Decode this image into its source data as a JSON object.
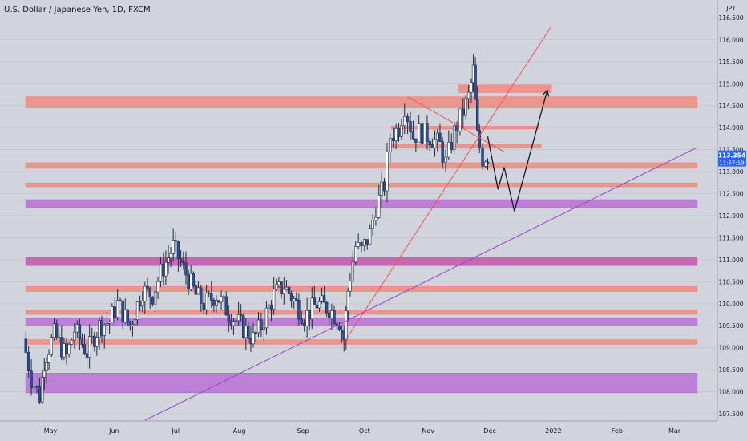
{
  "header": {
    "title": "U.S. Dollar / Japanese Yen, 1D, FXCM"
  },
  "price_badge": {
    "price": "113.354",
    "countdown": "11:57:19",
    "color": "#2962ff"
  },
  "colors": {
    "background": "#d1d4dc",
    "up_candle": "#ffffff",
    "down_candle": "#2a4f9a",
    "salmon_zone": "#ef8a80",
    "purple_zone": "#b66ad6",
    "magenta_zone": "#c04fa8",
    "red_trendline": "#f05050",
    "purple_trendline": "#9c42c8",
    "projection": "#131722"
  },
  "chart_data": {
    "type": "candlestick",
    "title": "U.S. Dollar / Japanese Yen, 1D, FXCM",
    "ylabel": "JPY",
    "ylim": [
      107.3,
      116.8
    ],
    "x_ticks": [
      "May",
      "Jun",
      "Jul",
      "Aug",
      "Sep",
      "Oct",
      "Nov",
      "Dec",
      "2022",
      "Feb",
      "Mar"
    ],
    "y_ticks": [
      "107.500",
      "108.000",
      "108.500",
      "109.000",
      "109.500",
      "110.000",
      "110.500",
      "111.000",
      "111.500",
      "112.000",
      "112.500",
      "113.000",
      "113.500",
      "114.000",
      "114.500",
      "115.000",
      "115.500",
      "116.000",
      "116.500"
    ],
    "last_price": 113.354,
    "price_path": [
      [
        "2021-04-19",
        109.2
      ],
      [
        "2021-04-23",
        108.3
      ],
      [
        "2021-04-27",
        107.9
      ],
      [
        "2021-04-29",
        108.7
      ],
      [
        "2021-05-04",
        109.3
      ],
      [
        "2021-05-10",
        108.8
      ],
      [
        "2021-05-14",
        109.4
      ],
      [
        "2021-05-20",
        108.9
      ],
      [
        "2021-05-26",
        109.5
      ],
      [
        "2021-05-31",
        109.6
      ],
      [
        "2021-06-04",
        110.0
      ],
      [
        "2021-06-10",
        109.5
      ],
      [
        "2021-06-16",
        110.3
      ],
      [
        "2021-06-21",
        110.2
      ],
      [
        "2021-06-25",
        110.7
      ],
      [
        "2021-07-01",
        111.3
      ],
      [
        "2021-07-06",
        110.8
      ],
      [
        "2021-07-12",
        110.2
      ],
      [
        "2021-07-16",
        110.0
      ],
      [
        "2021-07-22",
        110.2
      ],
      [
        "2021-07-28",
        109.8
      ],
      [
        "2021-08-03",
        109.5
      ],
      [
        "2021-08-09",
        109.2
      ],
      [
        "2021-08-13",
        109.5
      ],
      [
        "2021-08-19",
        110.2
      ],
      [
        "2021-08-24",
        110.4
      ],
      [
        "2021-08-30",
        110.0
      ],
      [
        "2021-09-03",
        109.7
      ],
      [
        "2021-09-09",
        110.0
      ],
      [
        "2021-09-15",
        109.9
      ],
      [
        "2021-09-20",
        109.6
      ],
      [
        "2021-09-22",
        109.2
      ],
      [
        "2021-09-24",
        110.3
      ],
      [
        "2021-09-28",
        111.3
      ],
      [
        "2021-10-01",
        111.2
      ],
      [
        "2021-10-05",
        111.6
      ],
      [
        "2021-10-08",
        112.2
      ],
      [
        "2021-10-12",
        112.7
      ],
      [
        "2021-10-15",
        113.8
      ],
      [
        "2021-10-19",
        114.0
      ],
      [
        "2021-10-22",
        114.5
      ],
      [
        "2021-10-26",
        113.8
      ],
      [
        "2021-10-29",
        113.9
      ],
      [
        "2021-11-03",
        113.8
      ],
      [
        "2021-11-08",
        113.6
      ],
      [
        "2021-11-11",
        113.2
      ],
      [
        "2021-11-15",
        113.9
      ],
      [
        "2021-11-18",
        114.2
      ],
      [
        "2021-11-22",
        114.7
      ],
      [
        "2021-11-24",
        115.3
      ],
      [
        "2021-11-26",
        113.8
      ],
      [
        "2021-11-29",
        113.3
      ],
      [
        "2021-11-30",
        113.35
      ]
    ],
    "zones": [
      {
        "kind": "salmon",
        "y0": 114.45,
        "y1": 114.7,
        "x0": "2021-04-19",
        "x1": "2022-03-12"
      },
      {
        "kind": "salmon",
        "y0": 114.8,
        "y1": 114.97,
        "x0": "2021-11-16",
        "x1": "2021-12-31"
      },
      {
        "kind": "salmon",
        "y0": 113.97,
        "y1": 114.03,
        "x0": "2021-10-14",
        "x1": "2021-12-25"
      },
      {
        "kind": "salmon",
        "y0": 113.55,
        "y1": 113.62,
        "x0": "2021-10-14",
        "x1": "2021-12-26"
      },
      {
        "kind": "salmon",
        "y0": 113.08,
        "y1": 113.2,
        "x0": "2021-04-19",
        "x1": "2022-03-12"
      },
      {
        "kind": "salmon",
        "y0": 112.66,
        "y1": 112.74,
        "x0": "2021-04-19",
        "x1": "2022-03-12"
      },
      {
        "kind": "purple",
        "y0": 112.18,
        "y1": 112.36,
        "x0": "2021-04-19",
        "x1": "2022-03-12"
      },
      {
        "kind": "magenta",
        "y0": 110.87,
        "y1": 111.06,
        "x0": "2021-04-19",
        "x1": "2022-03-12"
      },
      {
        "kind": "salmon",
        "y0": 110.28,
        "y1": 110.39,
        "x0": "2021-04-19",
        "x1": "2022-03-12"
      },
      {
        "kind": "salmon",
        "y0": 109.76,
        "y1": 109.86,
        "x0": "2021-04-19",
        "x1": "2022-03-12"
      },
      {
        "kind": "purple",
        "y0": 109.5,
        "y1": 109.67,
        "x0": "2021-04-19",
        "x1": "2022-03-12"
      },
      {
        "kind": "salmon",
        "y0": 109.08,
        "y1": 109.18,
        "x0": "2021-04-19",
        "x1": "2022-03-12"
      },
      {
        "kind": "purple",
        "y0": 107.98,
        "y1": 108.42,
        "x0": "2021-04-19",
        "x1": "2022-03-12"
      }
    ],
    "lines": [
      {
        "kind": "red",
        "pts": [
          [
            "2021-09-21",
            109.12
          ],
          [
            "2021-12-31",
            116.3
          ]
        ]
      },
      {
        "kind": "red",
        "pts": [
          [
            "2021-10-22",
            114.7
          ],
          [
            "2021-12-08",
            113.45
          ]
        ]
      },
      {
        "kind": "purple",
        "pts": [
          [
            "2021-06-16",
            107.35
          ],
          [
            "2022-03-12",
            113.55
          ]
        ]
      },
      {
        "kind": "projection",
        "pts": [
          [
            "2021-11-30",
            113.8
          ],
          [
            "2021-12-05",
            112.6
          ],
          [
            "2021-12-08",
            113.1
          ],
          [
            "2021-12-13",
            112.1
          ],
          [
            "2021-12-29",
            114.85
          ]
        ]
      }
    ]
  }
}
